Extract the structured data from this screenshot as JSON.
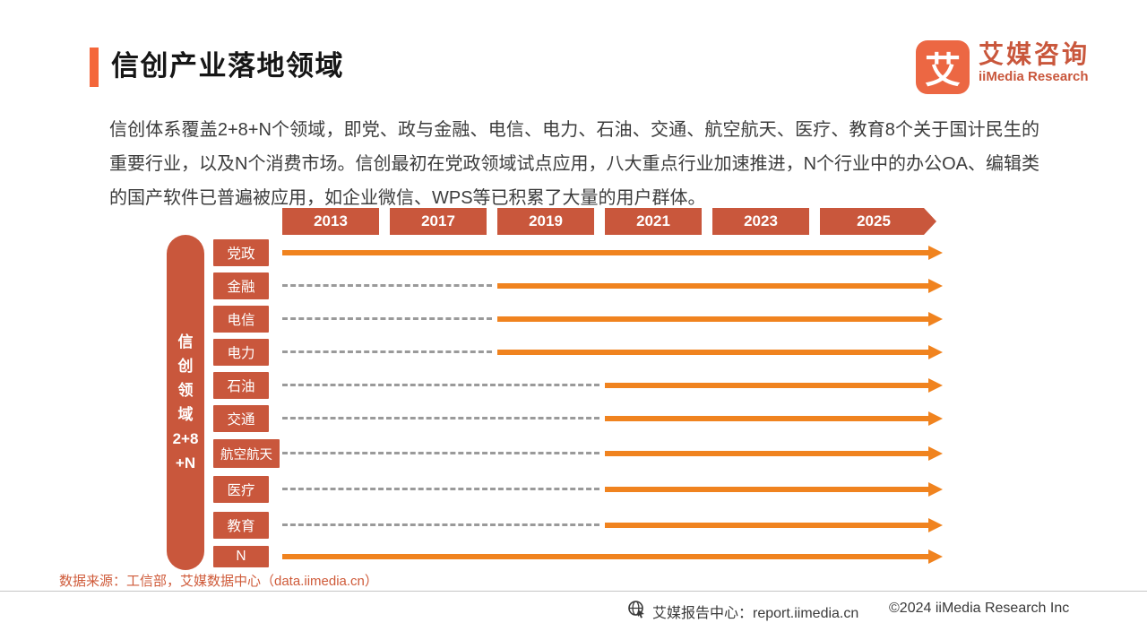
{
  "header": {
    "title": "信创产业落地领域",
    "logo": {
      "mark": "艾",
      "name_cn": "艾媒咨询",
      "name_en": "iiMedia Research"
    }
  },
  "intro_text": "信创体系覆盖2+8+N个领域，即党、政与金融、电信、电力、石油、交通、航空航天、医疗、教育8个关于国计民生的重要行业，以及N个消费市场。信创最初在党政领域试点应用，八大重点行业加速推进，N个行业中的办公OA、编辑类的国产软件已普遍被应用，如企业微信、WPS等已积累了大量的用户群体。",
  "diagram": {
    "axis_pill_label": "信创领域2+8+N",
    "axis_pill_lines": [
      "信",
      "创",
      "领",
      "域",
      "2+8",
      "+N"
    ],
    "timeline_years": [
      "2013",
      "2017",
      "2019",
      "2021",
      "2023",
      "2025"
    ],
    "rows": [
      {
        "label": "党政",
        "start_year": "2013"
      },
      {
        "label": "金融",
        "start_year": "2019"
      },
      {
        "label": "电信",
        "start_year": "2019"
      },
      {
        "label": "电力",
        "start_year": "2019"
      },
      {
        "label": "石油",
        "start_year": "2021"
      },
      {
        "label": "交通",
        "start_year": "2021"
      },
      {
        "label": "航空航天",
        "start_year": "2021"
      },
      {
        "label": "医疗",
        "start_year": "2021"
      },
      {
        "label": "教育",
        "start_year": "2021"
      },
      {
        "label": "N",
        "start_year": "2013"
      }
    ]
  },
  "footer": {
    "source": "数据来源：工信部，艾媒数据中心（data.iimedia.cn）",
    "report_center": "艾媒报告中心：report.iimedia.cn",
    "copyright": "©2024  iiMedia Research Inc"
  },
  "colors": {
    "brand_red": "#C9573C",
    "arrow_orange": "#F0831F",
    "accent_orange": "#F4663A",
    "logo_orange": "#EC6743",
    "dash_gray": "#9A9A9A"
  }
}
